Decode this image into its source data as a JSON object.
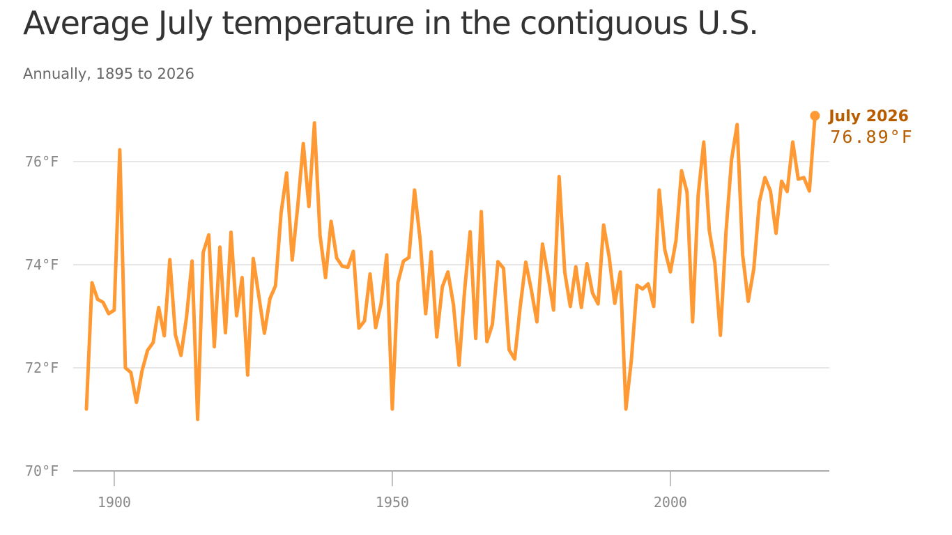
{
  "title": "Average July temperature in the contiguous U.S.",
  "subtitle": "Annually, 1895 to 2026",
  "colors": {
    "line": "#ff9933",
    "annotation": "#b85c00",
    "grid": "#dddddd",
    "axis": "#aaaaaa",
    "tick_text": "#888888"
  },
  "chart_data": {
    "type": "line",
    "title": "Average July temperature in the contiguous U.S.",
    "subtitle": "Annually, 1895 to 2026",
    "xlabel": "",
    "ylabel": "",
    "xlim": [
      1895,
      2026
    ],
    "ylim": [
      70,
      77
    ],
    "grid": true,
    "x_ticks": [
      1900,
      1950,
      2000
    ],
    "x_tick_labels": [
      "1900",
      "1950",
      "2000"
    ],
    "y_ticks": [
      70,
      72,
      74,
      76
    ],
    "y_tick_labels": [
      "70°F",
      "72°F",
      "74°F",
      "76°F"
    ],
    "annotation": {
      "label": "July 2026",
      "value_text": "76.89°F",
      "x": 2026,
      "y": 76.89
    },
    "x": [
      1895,
      1896,
      1897,
      1898,
      1899,
      1900,
      1901,
      1902,
      1903,
      1904,
      1905,
      1906,
      1907,
      1908,
      1909,
      1910,
      1911,
      1912,
      1913,
      1914,
      1915,
      1916,
      1917,
      1918,
      1919,
      1920,
      1921,
      1922,
      1923,
      1924,
      1925,
      1926,
      1927,
      1928,
      1929,
      1930,
      1931,
      1932,
      1933,
      1934,
      1935,
      1936,
      1937,
      1938,
      1939,
      1940,
      1941,
      1942,
      1943,
      1944,
      1945,
      1946,
      1947,
      1948,
      1949,
      1950,
      1951,
      1952,
      1953,
      1954,
      1955,
      1956,
      1957,
      1958,
      1959,
      1960,
      1961,
      1962,
      1963,
      1964,
      1965,
      1966,
      1967,
      1968,
      1969,
      1970,
      1971,
      1972,
      1973,
      1974,
      1975,
      1976,
      1977,
      1978,
      1979,
      1980,
      1981,
      1982,
      1983,
      1984,
      1985,
      1986,
      1987,
      1988,
      1989,
      1990,
      1991,
      1992,
      1993,
      1994,
      1995,
      1996,
      1997,
      1998,
      1999,
      2000,
      2001,
      2002,
      2003,
      2004,
      2005,
      2006,
      2007,
      2008,
      2009,
      2010,
      2011,
      2012,
      2013,
      2014,
      2015,
      2016,
      2017,
      2018,
      2019,
      2020,
      2021,
      2022,
      2023,
      2024,
      2025,
      2026
    ],
    "values": [
      71.2,
      73.65,
      73.33,
      73.27,
      73.05,
      73.12,
      76.23,
      72.0,
      71.91,
      71.33,
      71.94,
      72.34,
      72.49,
      73.17,
      72.62,
      74.1,
      72.64,
      72.24,
      72.98,
      74.07,
      71.0,
      74.24,
      74.58,
      72.41,
      74.34,
      72.68,
      74.63,
      73.01,
      73.75,
      71.86,
      74.12,
      73.39,
      72.67,
      73.34,
      73.59,
      75.0,
      75.78,
      74.09,
      75.13,
      76.35,
      75.13,
      76.75,
      74.57,
      73.75,
      74.84,
      74.13,
      73.97,
      73.95,
      74.26,
      72.77,
      72.91,
      73.82,
      72.78,
      73.25,
      74.19,
      71.2,
      73.65,
      74.07,
      74.14,
      75.45,
      74.49,
      73.05,
      74.25,
      72.6,
      73.57,
      73.86,
      73.22,
      72.05,
      73.49,
      74.64,
      72.57,
      75.03,
      72.51,
      72.84,
      74.06,
      73.93,
      72.35,
      72.17,
      73.18,
      74.05,
      73.51,
      72.89,
      74.4,
      73.79,
      73.12,
      75.71,
      73.86,
      73.19,
      73.96,
      73.17,
      74.02,
      73.45,
      73.24,
      74.77,
      74.15,
      73.25,
      73.86,
      71.2,
      72.16,
      73.6,
      73.53,
      73.63,
      73.19,
      75.45,
      74.29,
      73.86,
      74.46,
      75.82,
      75.41,
      72.89,
      75.35,
      76.38,
      74.66,
      74.04,
      72.63,
      74.63,
      76.04,
      76.72,
      74.19,
      73.29,
      73.92,
      75.22,
      75.69,
      75.43,
      74.61,
      75.62,
      75.42,
      76.38,
      75.66,
      75.69,
      75.43,
      76.89
    ]
  }
}
